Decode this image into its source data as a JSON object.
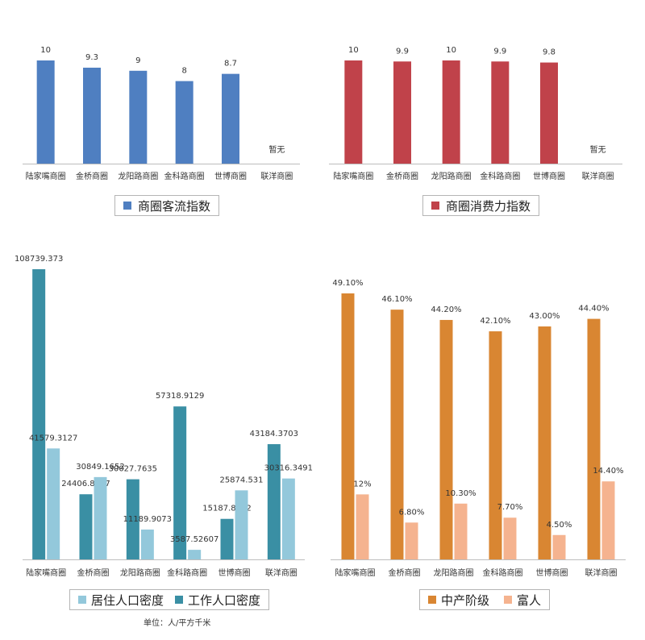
{
  "chart_data": [
    {
      "type": "bar",
      "categories": [
        "陆家嘴商圈",
        "金桥商圈",
        "龙阳路商圈",
        "金科路商圈",
        "世博商圈",
        "联洋商圈"
      ],
      "series": [
        {
          "name": "商圈客流指数",
          "color": "#4f7fc1",
          "values": [
            10,
            9.3,
            9,
            8,
            8.7,
            null
          ],
          "labels": [
            "10",
            "9.3",
            "9",
            "8",
            "8.7",
            ""
          ]
        }
      ],
      "missing_label": "暂无",
      "ylim": [
        0,
        10
      ]
    },
    {
      "type": "bar",
      "categories": [
        "陆家嘴商圈",
        "金桥商圈",
        "龙阳路商圈",
        "金科路商圈",
        "世博商圈",
        "联洋商圈"
      ],
      "series": [
        {
          "name": "商圈消费力指数",
          "color": "#c0424a",
          "values": [
            10,
            9.9,
            10,
            9.9,
            9.8,
            null
          ],
          "labels": [
            "10",
            "9.9",
            "10",
            "9.9",
            "9.8",
            ""
          ]
        }
      ],
      "missing_label": "暂无",
      "ylim": [
        0,
        10
      ]
    },
    {
      "type": "bar",
      "categories": [
        "陆家嘴商圈",
        "金桥商圈",
        "龙阳路商圈",
        "金科路商圈",
        "世博商圈",
        "联洋商圈"
      ],
      "series": [
        {
          "name": "工作人口密度",
          "color": "#3a8fa4",
          "values": [
            108739.373,
            24406.8317,
            30027.7635,
            57318.9129,
            15187.8742,
            43184.3703
          ],
          "labels": [
            "108739.373",
            "24406.8317",
            "30027.7635",
            "57318.9129",
            "15187.8742",
            "43184.3703"
          ]
        },
        {
          "name": "居住人口密度",
          "color": "#93c8db",
          "values": [
            41579.3127,
            30849.1652,
            11189.9073,
            3587.52607,
            25874.531,
            30316.3491
          ],
          "labels": [
            "41579.3127",
            "30849.1652",
            "11189.9073",
            "3587.52607",
            "25874.531",
            "30316.3491"
          ]
        }
      ],
      "legend_order": [
        "居住人口密度",
        "工作人口密度"
      ],
      "note": "单位：人/平方千米",
      "ylim": [
        0,
        108739.373
      ]
    },
    {
      "type": "bar",
      "categories": [
        "陆家嘴商圈",
        "金桥商圈",
        "龙阳路商圈",
        "金科路商圈",
        "世博商圈",
        "联洋商圈"
      ],
      "series": [
        {
          "name": "中产阶级",
          "color": "#d98632",
          "values": [
            49.1,
            46.1,
            44.2,
            42.1,
            43.0,
            44.4
          ],
          "labels": [
            "49.10%",
            "46.10%",
            "44.20%",
            "42.10%",
            "43.00%",
            "44.40%"
          ]
        },
        {
          "name": "富人",
          "color": "#f5b38f",
          "values": [
            12,
            6.8,
            10.3,
            7.7,
            4.5,
            14.4
          ],
          "labels": [
            "12%",
            "6.80%",
            "10.30%",
            "7.70%",
            "4.50%",
            "14.40%"
          ]
        }
      ],
      "legend_order": [
        "中产阶级",
        "富人"
      ],
      "ylim": [
        0,
        49.1
      ]
    }
  ]
}
